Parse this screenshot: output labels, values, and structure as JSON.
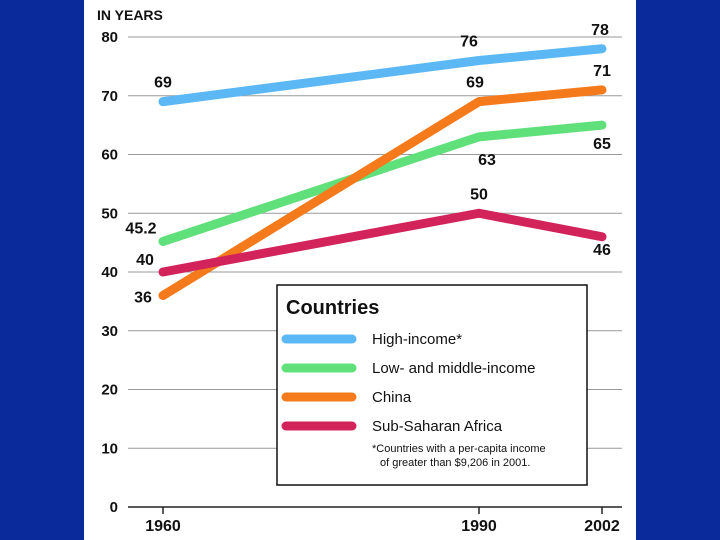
{
  "chart_data": {
    "type": "line",
    "ylabel": "IN YEARS",
    "x": [
      1960,
      1990,
      2002
    ],
    "x_tick_labels": [
      "1960",
      "1990",
      "2002"
    ],
    "ylim": [
      0,
      80
    ],
    "y_ticks": [
      0,
      10,
      20,
      30,
      40,
      50,
      60,
      70,
      80
    ],
    "grid": true,
    "legend_title": "Countries",
    "legend_position": "bottom-right",
    "footnote_line1": "*Countries with a per-capita income",
    "footnote_line2": "of greater than $9,206 in 2001.",
    "series": [
      {
        "name": "High-income*",
        "color": "#5cb8f4",
        "values": [
          69,
          76,
          78
        ],
        "labels": [
          "69",
          "76",
          "78"
        ]
      },
      {
        "name": "Low- and middle-income",
        "color": "#5fe07a",
        "values": [
          45.2,
          63,
          65
        ],
        "labels": [
          "45.2",
          "63",
          "65"
        ]
      },
      {
        "name": "China",
        "color": "#f57a1c",
        "values": [
          36,
          69,
          71
        ],
        "labels": [
          "36",
          "69",
          "71"
        ]
      },
      {
        "name": "Sub-Saharan Africa",
        "color": "#d2235b",
        "values": [
          40,
          50,
          46
        ],
        "labels": [
          "40",
          "50",
          "46"
        ]
      }
    ]
  }
}
